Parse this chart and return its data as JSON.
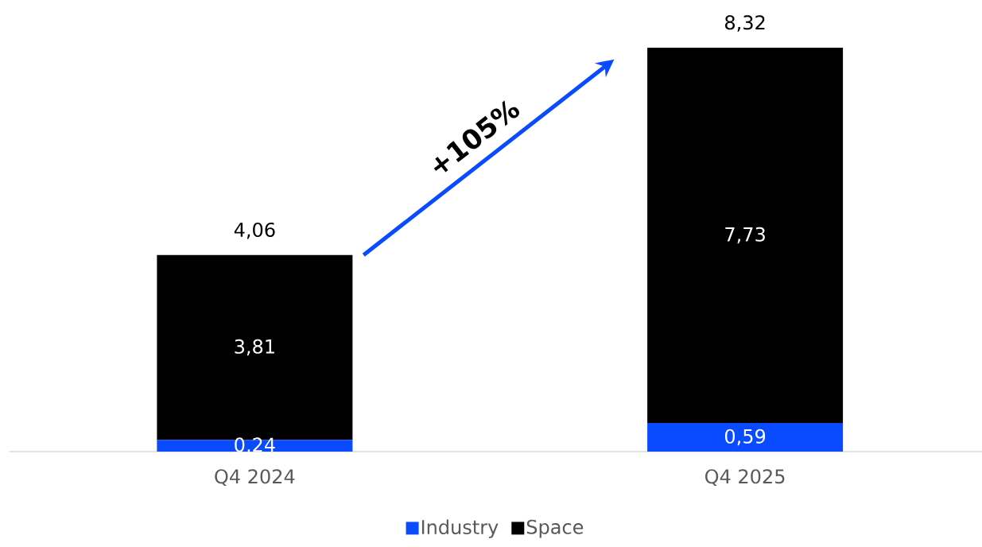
{
  "chart_data": {
    "type": "bar",
    "stacked": true,
    "categories": [
      "Q4 2024",
      "Q4 2025"
    ],
    "series": [
      {
        "name": "Industry",
        "color": "#0a4bff",
        "values": [
          0.24,
          0.59
        ],
        "value_labels": [
          "0,24",
          "0,59"
        ]
      },
      {
        "name": "Space",
        "color": "#000000",
        "values": [
          3.81,
          7.73
        ],
        "value_labels": [
          "3,81",
          "7,73"
        ]
      }
    ],
    "totals": [
      "4,06",
      "8,32"
    ],
    "legend": "bottom",
    "annotations": [
      "+105%"
    ]
  }
}
